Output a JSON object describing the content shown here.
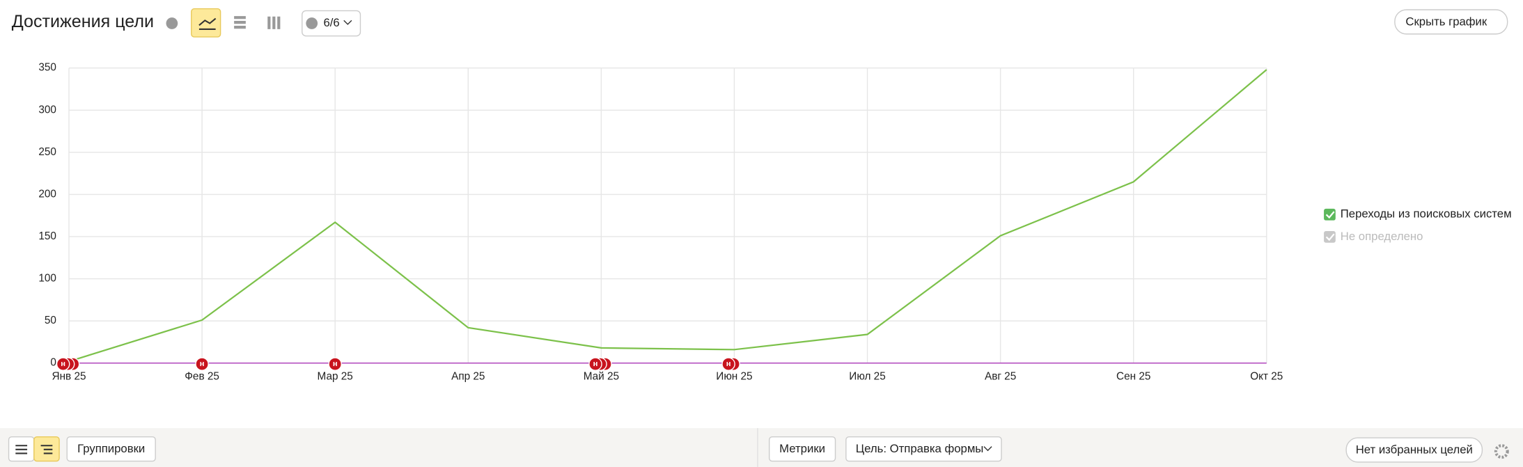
{
  "header": {
    "title": "Достижения цели",
    "comments_button": "6/6",
    "hide_button": "Скрыть график"
  },
  "chart_data": {
    "type": "line",
    "categories": [
      "Янв 25",
      "Фев 25",
      "Мар 25",
      "Апр 25",
      "Май 25",
      "Июн 25",
      "Июл 25",
      "Авг 25",
      "Сен 25",
      "Окт 25"
    ],
    "series": [
      {
        "name": "Переходы из поисковых систем",
        "color": "#7cc14a",
        "values": [
          2,
          51,
          167,
          42,
          18,
          16,
          34,
          151,
          215,
          348
        ],
        "enabled": true
      },
      {
        "name": "Не определено",
        "color": "#bbbbbb",
        "enabled": false
      }
    ],
    "ylim": [
      0,
      350
    ],
    "yticks": [
      0,
      50,
      100,
      150,
      200,
      250,
      300,
      350
    ],
    "grid": true,
    "axis_color": "#b44fc0",
    "annotations": [
      {
        "at": "Янв 25",
        "count": 3,
        "label": "н"
      },
      {
        "at": "Фев 25",
        "count": 1,
        "label": "н"
      },
      {
        "at": "Мар 25",
        "count": 1,
        "label": "н"
      },
      {
        "at": "Май 25",
        "count": 3,
        "label": "н"
      },
      {
        "at": "Июн 25",
        "count": 2,
        "label": "н"
      }
    ]
  },
  "footer": {
    "groupings": "Группировки",
    "metrics": "Метрики",
    "goal": "Цель: Отправка формы",
    "favorites": "Нет избранных целей"
  }
}
